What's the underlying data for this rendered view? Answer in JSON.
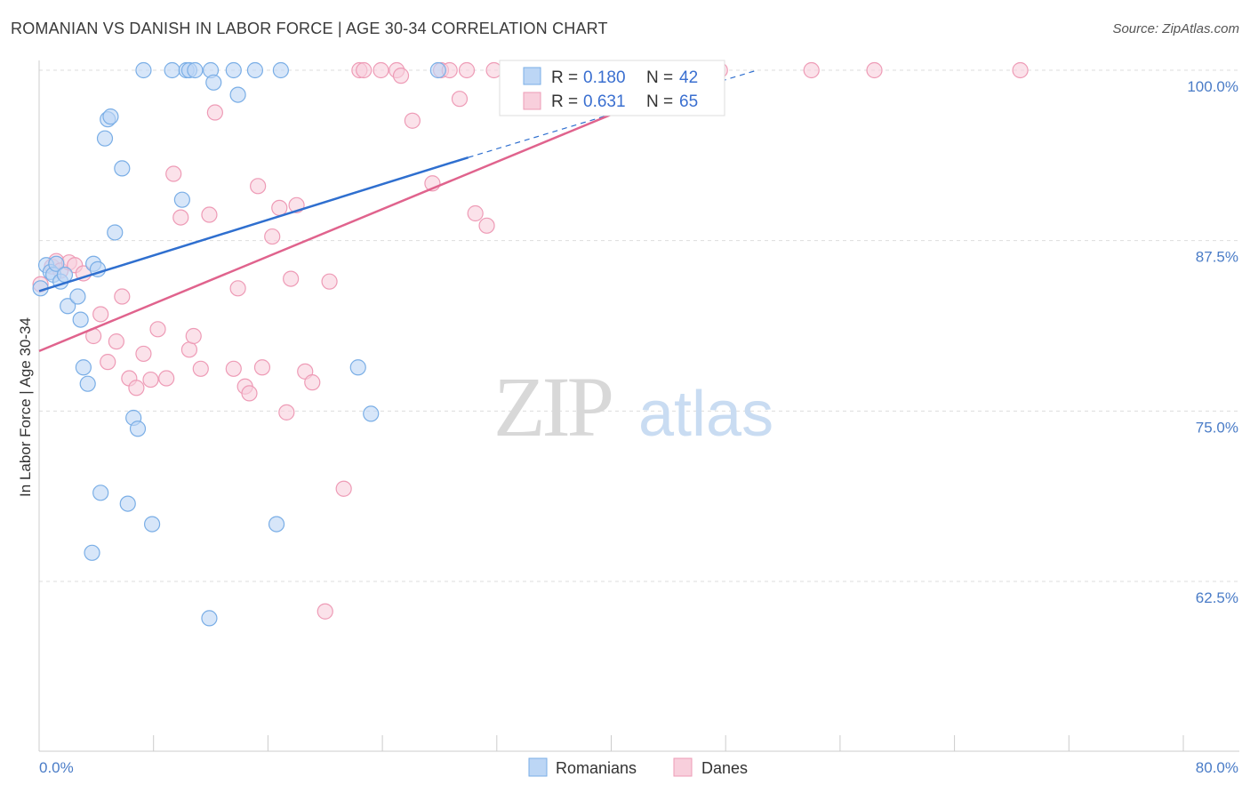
{
  "title": "ROMANIAN VS DANISH IN LABOR FORCE | AGE 30-34 CORRELATION CHART",
  "source": "Source: ZipAtlas.com",
  "watermark": {
    "zip": "ZIP",
    "atlas": "atlas"
  },
  "colors": {
    "romanians": "#7aaee6",
    "romanians_fill": "#bcd6f5",
    "romanians_line": "#2f6fcf",
    "danes": "#ee9bb6",
    "danes_fill": "#f8cfdc",
    "danes_line": "#e0638d",
    "grid": "#dddddd",
    "label": "#4a7cc7"
  },
  "legend": {
    "rows": [
      {
        "r_label": "R = ",
        "r_value": "0.180",
        "n_label": "N = ",
        "n_value": "42"
      },
      {
        "r_label": "R = ",
        "r_value": "0.631",
        "n_label": "N = ",
        "n_value": "65"
      }
    ]
  },
  "chart_data": {
    "type": "scatter",
    "title": "ROMANIAN VS DANISH IN LABOR FORCE | AGE 30-34 CORRELATION CHART",
    "xlabel": "",
    "ylabel": "In Labor Force | Age 30-34",
    "xlim": [
      0,
      80
    ],
    "ylim": [
      52,
      101
    ],
    "x_tick_labels": [
      "0.0%",
      "80.0%"
    ],
    "y_ticks": [
      62.5,
      75.0,
      87.5,
      100.0
    ],
    "y_tick_labels": [
      "62.5%",
      "75.0%",
      "87.5%",
      "100.0%"
    ],
    "grid": true,
    "legend_position": "bottom-center",
    "series": [
      {
        "name": "Romanians",
        "R": 0.18,
        "N": 42,
        "trend": {
          "x0": 0,
          "y0": 83.8,
          "x1": 30,
          "y1": 93.6,
          "dash_to_x": 50.2,
          "dash_to_y": 100
        },
        "points": [
          [
            0.1,
            84.0
          ],
          [
            0.5,
            85.7
          ],
          [
            0.8,
            85.2
          ],
          [
            1.0,
            85.0
          ],
          [
            1.2,
            85.8
          ],
          [
            1.5,
            84.5
          ],
          [
            1.8,
            85.0
          ],
          [
            2.0,
            82.7
          ],
          [
            2.7,
            83.4
          ],
          [
            2.9,
            81.7
          ],
          [
            3.1,
            78.2
          ],
          [
            3.4,
            77.0
          ],
          [
            3.8,
            85.8
          ],
          [
            4.1,
            85.4
          ],
          [
            4.3,
            69.0
          ],
          [
            3.7,
            64.6
          ],
          [
            4.6,
            95.0
          ],
          [
            4.8,
            96.4
          ],
          [
            5.0,
            96.6
          ],
          [
            5.3,
            88.1
          ],
          [
            5.8,
            92.8
          ],
          [
            6.2,
            68.2
          ],
          [
            6.6,
            74.5
          ],
          [
            6.9,
            73.7
          ],
          [
            7.9,
            66.7
          ],
          [
            7.3,
            100.0
          ],
          [
            9.3,
            100.0
          ],
          [
            10.3,
            100.0
          ],
          [
            10.0,
            90.5
          ],
          [
            10.5,
            100.0
          ],
          [
            10.9,
            100.0
          ],
          [
            11.9,
            59.8
          ],
          [
            12.0,
            100.0
          ],
          [
            12.2,
            99.1
          ],
          [
            13.6,
            100.0
          ],
          [
            13.9,
            98.2
          ],
          [
            15.1,
            100.0
          ],
          [
            16.6,
            66.7
          ],
          [
            16.9,
            100.0
          ],
          [
            22.3,
            78.2
          ],
          [
            23.2,
            74.8
          ],
          [
            27.9,
            100.0
          ]
        ]
      },
      {
        "name": "Danes",
        "R": 0.631,
        "N": 65,
        "trend": {
          "x0": 0,
          "y0": 79.4,
          "x1": 47.5,
          "y1": 100.0
        },
        "points": [
          [
            0.1,
            84.3
          ],
          [
            0.9,
            85.6
          ],
          [
            1.2,
            86.0
          ],
          [
            1.5,
            85.3
          ],
          [
            2.1,
            85.9
          ],
          [
            2.5,
            85.7
          ],
          [
            3.1,
            85.1
          ],
          [
            3.8,
            80.5
          ],
          [
            4.3,
            82.1
          ],
          [
            4.8,
            78.6
          ],
          [
            5.4,
            80.1
          ],
          [
            5.8,
            83.4
          ],
          [
            6.3,
            77.4
          ],
          [
            6.8,
            76.7
          ],
          [
            7.3,
            79.2
          ],
          [
            7.8,
            77.3
          ],
          [
            8.3,
            81.0
          ],
          [
            8.9,
            77.4
          ],
          [
            9.4,
            92.4
          ],
          [
            9.9,
            89.2
          ],
          [
            10.5,
            79.5
          ],
          [
            10.8,
            80.5
          ],
          [
            11.3,
            78.1
          ],
          [
            11.9,
            89.4
          ],
          [
            12.3,
            96.9
          ],
          [
            13.6,
            78.1
          ],
          [
            13.9,
            84.0
          ],
          [
            14.4,
            76.8
          ],
          [
            14.7,
            76.3
          ],
          [
            15.3,
            91.5
          ],
          [
            15.6,
            78.2
          ],
          [
            16.3,
            87.8
          ],
          [
            16.8,
            89.9
          ],
          [
            17.3,
            74.9
          ],
          [
            17.6,
            84.7
          ],
          [
            18.0,
            90.1
          ],
          [
            18.6,
            77.9
          ],
          [
            19.1,
            77.1
          ],
          [
            20.0,
            60.3
          ],
          [
            20.3,
            84.5
          ],
          [
            21.3,
            69.3
          ],
          [
            22.4,
            100.0
          ],
          [
            22.7,
            100.0
          ],
          [
            23.9,
            100.0
          ],
          [
            25.0,
            100.0
          ],
          [
            25.3,
            99.6
          ],
          [
            26.1,
            96.3
          ],
          [
            27.5,
            91.7
          ],
          [
            28.1,
            100.0
          ],
          [
            28.7,
            100.0
          ],
          [
            29.4,
            97.9
          ],
          [
            29.9,
            100.0
          ],
          [
            30.5,
            89.5
          ],
          [
            31.3,
            88.6
          ],
          [
            31.8,
            100.0
          ],
          [
            34.3,
            100.0
          ],
          [
            36.1,
            100.0
          ],
          [
            38.2,
            100.0
          ],
          [
            40.0,
            100.0
          ],
          [
            43.3,
            100.0
          ],
          [
            44.6,
            100.0
          ],
          [
            47.6,
            100.0
          ],
          [
            54.0,
            100.0
          ],
          [
            58.4,
            100.0
          ],
          [
            68.6,
            100.0
          ]
        ]
      }
    ]
  }
}
